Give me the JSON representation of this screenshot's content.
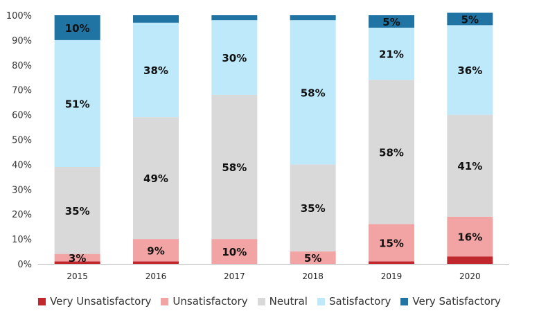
{
  "chart_data": {
    "type": "bar",
    "stacked": true,
    "categories": [
      "2015",
      "2016",
      "2017",
      "2018",
      "2019",
      "2020"
    ],
    "ylim": [
      0,
      100
    ],
    "yticks": [
      "0%",
      "10%",
      "20%",
      "30%",
      "40%",
      "50%",
      "60%",
      "70%",
      "80%",
      "90%",
      "100%"
    ],
    "grid": false,
    "legend_position": "bottom",
    "series": [
      {
        "name": "Very Unsatisfactory",
        "color": "#c0282d",
        "values": [
          1,
          1,
          0,
          0,
          1,
          3
        ],
        "labels": [
          "",
          "",
          "",
          "",
          "",
          ""
        ]
      },
      {
        "name": "Unsatisfactory",
        "color": "#f2a3a3",
        "values": [
          3,
          9,
          10,
          5,
          15,
          16
        ],
        "labels": [
          "3%",
          "9%",
          "10%",
          "5%",
          "15%",
          "16%"
        ]
      },
      {
        "name": "Neutral",
        "color": "#d9d9d9",
        "values": [
          35,
          49,
          58,
          35,
          58,
          41
        ],
        "labels": [
          "35%",
          "49%",
          "58%",
          "35%",
          "58%",
          "41%"
        ]
      },
      {
        "name": "Satisfactory",
        "color": "#bde9fb",
        "values": [
          51,
          38,
          30,
          58,
          21,
          36
        ],
        "labels": [
          "51%",
          "38%",
          "30%",
          "58%",
          "21%",
          "36%"
        ]
      },
      {
        "name": "Very Satisfactory",
        "color": "#1f74a4",
        "values": [
          10,
          3,
          2,
          2,
          5,
          5
        ],
        "labels": [
          "10%",
          "",
          "",
          "",
          "5%",
          "5%"
        ]
      }
    ]
  }
}
